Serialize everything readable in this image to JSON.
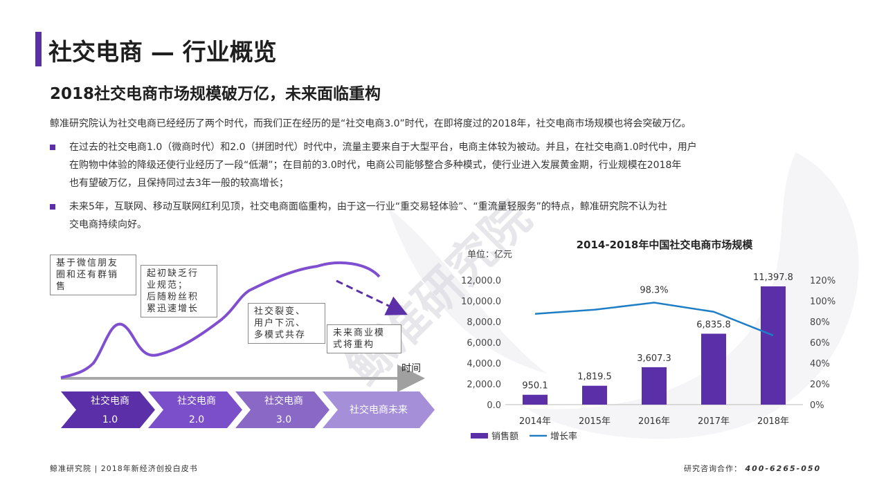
{
  "page": {
    "title": "社交电商 — 行业概览",
    "subtitle": "2018社交电商市场规模破万亿，未来面临重构",
    "intro": "鲸准研究院认为社交电商已经经历了两个时代，而我们正在经历的是“社交电商3.0”时代，在即将度过的2018年，社交电商市场规模也将会突破万亿。",
    "bullets": [
      [
        "在过去的社交电商1.0（微商时代）和2.0（拼团时代）时代中，流量主要来自于大型平台，电商主体较为被动。并且，在社交电商1.0时代中，用户",
        "在购物中体验的降级还使行业经历了一段“低潮”；在目前的3.0时代，电商公司能够整合多种模式，使行业进入发展黄金期，行业规模在2018年",
        "也有望破万亿，且保持同过去3年一般的较高增长；"
      ],
      [
        "未来5年，互联网、移动互联网红利见顶，社交电商面临重构，由于这一行业“重交易轻体验”、“重流量轻服务”的特点，鲸准研究院不认为社",
        "交电商持续向好。"
      ]
    ],
    "watermark": "鲸准研究院"
  },
  "footer": {
    "left": "鲸准研究院 | 2018年新经济创投白皮书",
    "right_label": "研究咨询合作：",
    "right_phone": "400-6265-050"
  },
  "timeline": {
    "axis_label": "时间",
    "notes": [
      [
        "基于微信朋友",
        "圈和还有群销",
        "售"
      ],
      [
        "起初缺乏行",
        "业规范；",
        "后随粉丝积",
        "累迅速增长"
      ],
      [
        "社交裂变、",
        "用户下沉、",
        "多模式共存"
      ],
      [
        "未来商业模",
        "式将重构"
      ]
    ],
    "stages": [
      [
        "社交电商",
        "1.0"
      ],
      [
        "社交电商",
        "2.0"
      ],
      [
        "社交电商",
        "3.0"
      ],
      [
        "社交电商未来"
      ]
    ],
    "stage_colors": [
      "#5b2fa8",
      "#7a4fc9",
      "#8a68c6",
      "#a58fd8"
    ],
    "curve_color": "#7f4fd0"
  },
  "chart_data": {
    "type": "bar",
    "title": "2014-2018年中国社交电商市场规模",
    "unit_label": "单位：亿元",
    "categories": [
      "2014年",
      "2015年",
      "2016年",
      "2017年",
      "2018年"
    ],
    "series": [
      {
        "name": "销售额",
        "type": "bar",
        "axis": "left",
        "values": [
          950.1,
          1819.5,
          3607.3,
          6835.8,
          11397.8
        ],
        "labels": [
          "950.1",
          "1,819.5",
          "3,607.3",
          "6,835.8",
          "11,397.8"
        ],
        "color": "#5b2fa8"
      },
      {
        "name": "增长率",
        "type": "line",
        "axis": "right",
        "values": [
          87.5,
          91.5,
          98.3,
          89.5,
          66.7
        ],
        "labels": [
          "",
          "",
          "98.3%",
          "",
          ""
        ],
        "color": "#1f7dc4"
      }
    ],
    "ylim": [
      0,
      12000
    ],
    "yticks": [
      "0.0",
      "2,000.0",
      "4,000.0",
      "6,000.0",
      "8,000.0",
      "10,000.0",
      "12,000.0"
    ],
    "y2lim": [
      0,
      120
    ],
    "y2ticks": [
      "0%",
      "20%",
      "40%",
      "60%",
      "80%",
      "100%",
      "120%"
    ],
    "legend_position": "bottom-left",
    "grid": false
  }
}
